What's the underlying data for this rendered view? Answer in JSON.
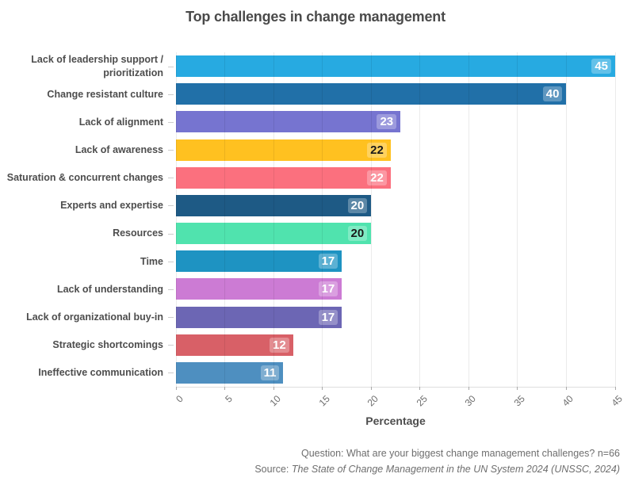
{
  "title": "Top challenges in change management",
  "chart_data": {
    "type": "bar",
    "orientation": "horizontal",
    "title": "Top challenges in change management",
    "xlabel": "Percentage",
    "ylabel": "",
    "xlim": [
      0,
      45
    ],
    "x_ticks": [
      0,
      5,
      10,
      15,
      20,
      25,
      30,
      35,
      40,
      45
    ],
    "grid": "vertical",
    "legend": "none",
    "categories": [
      "Lack of leadership support /\nprioritization",
      "Change resistant culture",
      "Lack of alignment",
      "Lack of awareness",
      "Saturation & concurrent changes",
      "Experts and expertise",
      "Resources",
      "Time",
      "Lack of understanding",
      "Lack of organizational buy-in",
      "Strategic shortcomings",
      "Ineffective communication"
    ],
    "values": [
      45,
      40,
      23,
      22,
      22,
      20,
      20,
      17,
      17,
      17,
      12,
      11
    ],
    "bar_colors": [
      "#27AAE1",
      "#2170A8",
      "#7674D0",
      "#FFC120",
      "#FB707E",
      "#1E5A85",
      "#50E3AE",
      "#1E93C2",
      "#CC7BD4",
      "#6C66B4",
      "#D86067",
      "#4E8FC0"
    ],
    "value_label_colors": [
      "#ffffff",
      "#ffffff",
      "#ffffff",
      "#1a1a1a",
      "#ffffff",
      "#ffffff",
      "#1a1a1a",
      "#ffffff",
      "#ffffff",
      "#ffffff",
      "#ffffff",
      "#ffffff"
    ]
  },
  "x_axis_title": "Percentage",
  "footer": {
    "question": "Question: What are your biggest change management challenges? n=66",
    "source_prefix": "Source: ",
    "source_text": "The State of Change Management in the UN System 2024 (UNSSC, 2024)"
  },
  "colors": {
    "title_text": "#4a4a4a",
    "category_text": "#4d4d4d",
    "tick_text": "#6e6e6e",
    "footer_text": "#6e6e6e",
    "gridline": "rgba(0,0,0,0.08)",
    "background": "#ffffff"
  }
}
